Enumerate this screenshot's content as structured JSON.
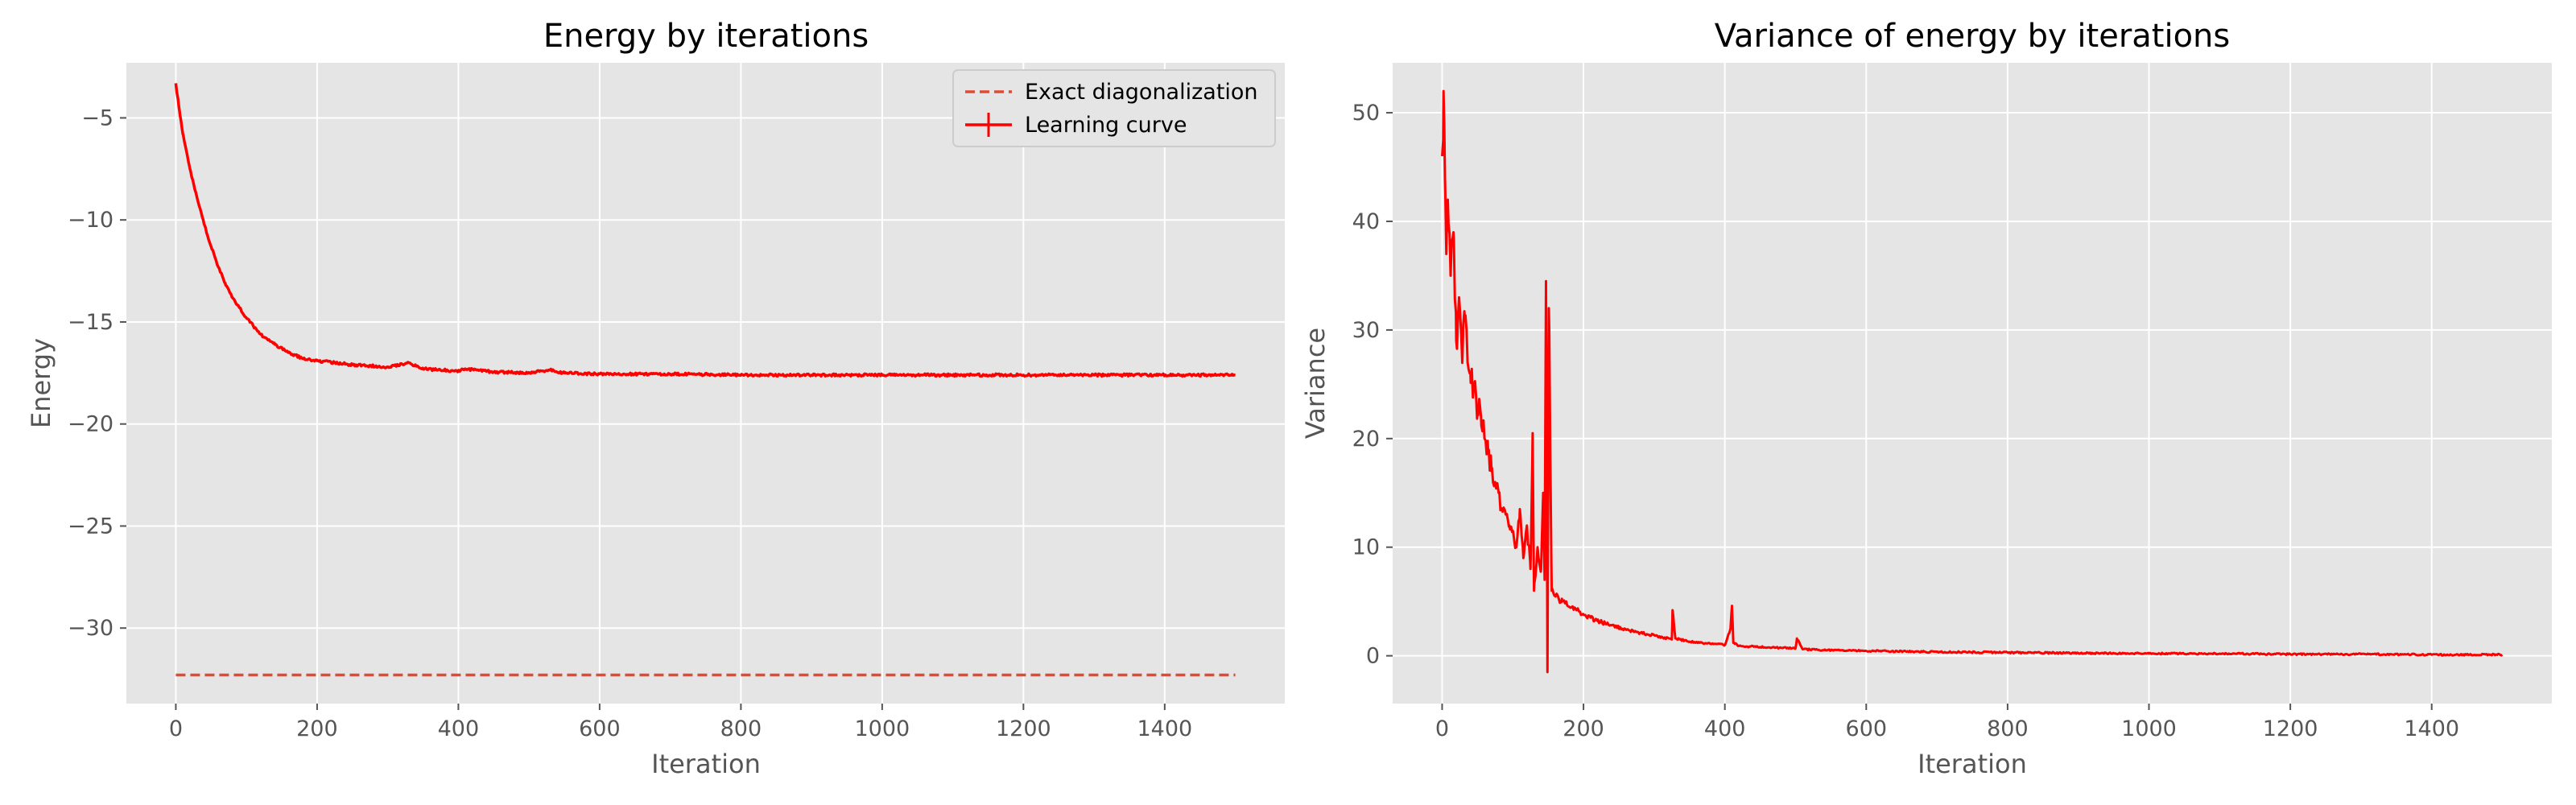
{
  "colors": {
    "background": "#ffffff",
    "plot_bg": "#e5e5e5",
    "grid": "#ffffff",
    "series": "#ff0000",
    "exact": "#e24a33"
  },
  "chart_data": [
    {
      "type": "line",
      "title": "Energy by iterations",
      "xlabel": "Iteration",
      "ylabel": "Energy",
      "xlim": [
        -70,
        1570
      ],
      "ylim": [
        -33.7,
        -2.3
      ],
      "xticks": [
        0,
        200,
        400,
        600,
        800,
        1000,
        1200,
        1400
      ],
      "yticks": [
        -30,
        -25,
        -20,
        -15,
        -10,
        -5
      ],
      "xtick_labels": [
        "0",
        "200",
        "400",
        "600",
        "800",
        "1000",
        "1200",
        "1400"
      ],
      "ytick_labels": [
        "−30",
        "−25",
        "−20",
        "−15",
        "−10",
        "−5"
      ],
      "grid": true,
      "legend": "top-right",
      "series": [
        {
          "name": "Exact diagonalization",
          "style": "dashed",
          "x": [
            0,
            1500
          ],
          "y": [
            -32.3,
            -32.3
          ]
        },
        {
          "name": "Learning curve",
          "style": "solid-errorbar",
          "x": [
            0,
            5,
            10,
            20,
            30,
            40,
            50,
            60,
            70,
            80,
            90,
            100,
            120,
            140,
            160,
            180,
            200,
            250,
            300,
            330,
            350,
            400,
            410,
            450,
            500,
            530,
            550,
            600,
            700,
            800,
            900,
            1000,
            1100,
            1200,
            1300,
            1400,
            1500
          ],
          "y": [
            -3.3,
            -4.6,
            -5.8,
            -7.5,
            -8.9,
            -10.2,
            -11.3,
            -12.3,
            -13.1,
            -13.8,
            -14.3,
            -14.8,
            -15.6,
            -16.1,
            -16.5,
            -16.8,
            -16.9,
            -17.1,
            -17.2,
            -17.0,
            -17.3,
            -17.4,
            -17.3,
            -17.45,
            -17.5,
            -17.35,
            -17.5,
            -17.55,
            -17.55,
            -17.6,
            -17.6,
            -17.6,
            -17.6,
            -17.6,
            -17.6,
            -17.6,
            -17.6
          ]
        }
      ]
    },
    {
      "type": "line",
      "title": "Variance of energy by iterations",
      "xlabel": "Iteration",
      "ylabel": "Variance",
      "xlim": [
        -70,
        1570
      ],
      "ylim": [
        -4.4,
        54.6
      ],
      "xticks": [
        0,
        200,
        400,
        600,
        800,
        1000,
        1200,
        1400
      ],
      "yticks": [
        0,
        10,
        20,
        30,
        40,
        50
      ],
      "xtick_labels": [
        "0",
        "200",
        "400",
        "600",
        "800",
        "1000",
        "1200",
        "1400"
      ],
      "ytick_labels": [
        "0",
        "10",
        "20",
        "30",
        "40",
        "50"
      ],
      "grid": true,
      "series": [
        {
          "style": "solid",
          "x": [
            0,
            2,
            4,
            6,
            8,
            12,
            16,
            20,
            24,
            28,
            32,
            36,
            40,
            45,
            50,
            55,
            60,
            65,
            70,
            75,
            80,
            85,
            90,
            95,
            100,
            105,
            110,
            115,
            120,
            125,
            128,
            130,
            135,
            140,
            143,
            145,
            147,
            149,
            151,
            155,
            160,
            170,
            180,
            190,
            200,
            220,
            240,
            260,
            280,
            300,
            325,
            326,
            330,
            350,
            380,
            400,
            408,
            410,
            412,
            420,
            450,
            500,
            502,
            510,
            550,
            600,
            650,
            700,
            800,
            900,
            1000,
            1100,
            1200,
            1300,
            1400,
            1500
          ],
          "y": [
            46,
            52,
            44,
            37,
            42,
            35,
            39,
            29,
            33,
            28,
            31,
            27,
            26,
            25,
            23,
            22,
            20,
            19,
            17,
            16,
            15,
            13.5,
            13,
            12,
            11.5,
            10,
            13.5,
            9,
            12,
            8,
            20.5,
            6,
            10,
            8,
            15,
            7,
            34.5,
            -1.5,
            32,
            6,
            5.5,
            5,
            4.5,
            4.2,
            3.8,
            3.2,
            2.8,
            2.4,
            2.1,
            1.9,
            1.5,
            4.2,
            1.6,
            1.3,
            1.1,
            1.0,
            2.5,
            4.6,
            1.2,
            0.9,
            0.8,
            0.7,
            1.6,
            0.6,
            0.5,
            0.45,
            0.4,
            0.35,
            0.3,
            0.25,
            0.2,
            0.2,
            0.15,
            0.15,
            0.1,
            0.1
          ]
        }
      ]
    }
  ]
}
